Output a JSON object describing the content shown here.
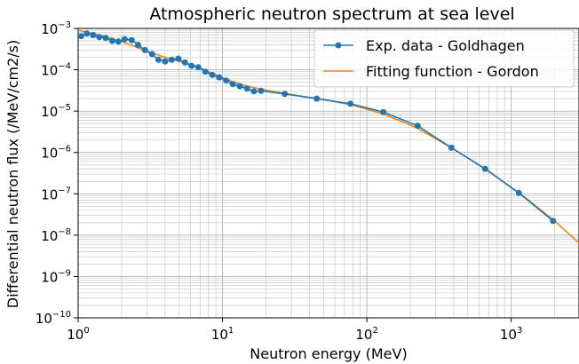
{
  "chart_data": {
    "type": "line",
    "title": "Atmospheric neutron spectrum at sea level",
    "xlabel": "Neutron energy (MeV)",
    "ylabel": "Differential neutron flux (/MeV/cm2/s)",
    "x_scale": "log",
    "y_scale": "log",
    "xlim": [
      1,
      2950
    ],
    "ylim": [
      1e-10,
      0.001
    ],
    "x_ticks": [
      {
        "base": "10",
        "exp": "0",
        "value": 1
      },
      {
        "base": "10",
        "exp": "1",
        "value": 10
      },
      {
        "base": "10",
        "exp": "2",
        "value": 100
      },
      {
        "base": "10",
        "exp": "3",
        "value": 1000
      }
    ],
    "y_ticks": [
      {
        "base": "10",
        "exp": "−3",
        "value": 0.001
      },
      {
        "base": "10",
        "exp": "−4",
        "value": 0.0001
      },
      {
        "base": "10",
        "exp": "−5",
        "value": 1e-05
      },
      {
        "base": "10",
        "exp": "−6",
        "value": 1e-06
      },
      {
        "base": "10",
        "exp": "−7",
        "value": 1e-07
      },
      {
        "base": "10",
        "exp": "−8",
        "value": 1e-08
      },
      {
        "base": "10",
        "exp": "−9",
        "value": 1e-09
      },
      {
        "base": "10",
        "exp": "−10",
        "value": 1e-10
      }
    ],
    "grid": true,
    "legend_position": "top-right",
    "series": [
      {
        "name": "Exp. data - Goldhagen",
        "color": "#1f77b4",
        "marker": "circle",
        "x": [
          1.05,
          1.15,
          1.27,
          1.4,
          1.55,
          1.72,
          1.9,
          2.1,
          2.35,
          2.6,
          2.9,
          3.25,
          3.6,
          4.0,
          4.45,
          4.95,
          5.5,
          6.1,
          6.8,
          7.6,
          8.5,
          9.5,
          10.6,
          11.8,
          13.2,
          14.8,
          16.5,
          18.5,
          27,
          45,
          77,
          130,
          225,
          385,
          660,
          1130,
          1950
        ],
        "y": [
          0.00065,
          0.00075,
          0.00069,
          0.00062,
          0.00059,
          0.0005,
          0.00048,
          0.00055,
          0.00052,
          0.0004,
          0.0003,
          0.00024,
          0.000175,
          0.00016,
          0.000175,
          0.000185,
          0.00015,
          0.000125,
          0.000115,
          9e-05,
          7.5e-05,
          6.5e-05,
          5.5e-05,
          4.5e-05,
          4e-05,
          3.5e-05,
          3e-05,
          3.1e-05,
          2.6e-05,
          2e-05,
          1.5e-05,
          9.5e-06,
          4.4e-06,
          1.3e-06,
          4e-07,
          1.05e-07,
          2.2e-08
        ]
      },
      {
        "name": "Fitting function - Gordon",
        "color": "#ff7f0e",
        "marker": "none",
        "x": [
          1.0,
          1.2,
          1.5,
          2.0,
          2.5,
          3.0,
          4.0,
          5.0,
          6.0,
          7.0,
          8.0,
          10,
          12,
          15,
          20,
          30,
          50,
          80,
          130,
          220,
          400,
          700,
          1200,
          2000,
          2950
        ],
        "y": [
          0.0009,
          0.00078,
          0.00065,
          0.00048,
          0.00036,
          0.00028,
          0.0002,
          0.00016,
          0.000135,
          0.00011,
          9e-05,
          6.5e-05,
          5e-05,
          4e-05,
          3.2e-05,
          2.5e-05,
          1.9e-05,
          1.4e-05,
          8.5e-06,
          4e-06,
          1.2e-06,
          3.5e-07,
          9e-08,
          2.2e-08,
          6.5e-09
        ]
      }
    ]
  }
}
